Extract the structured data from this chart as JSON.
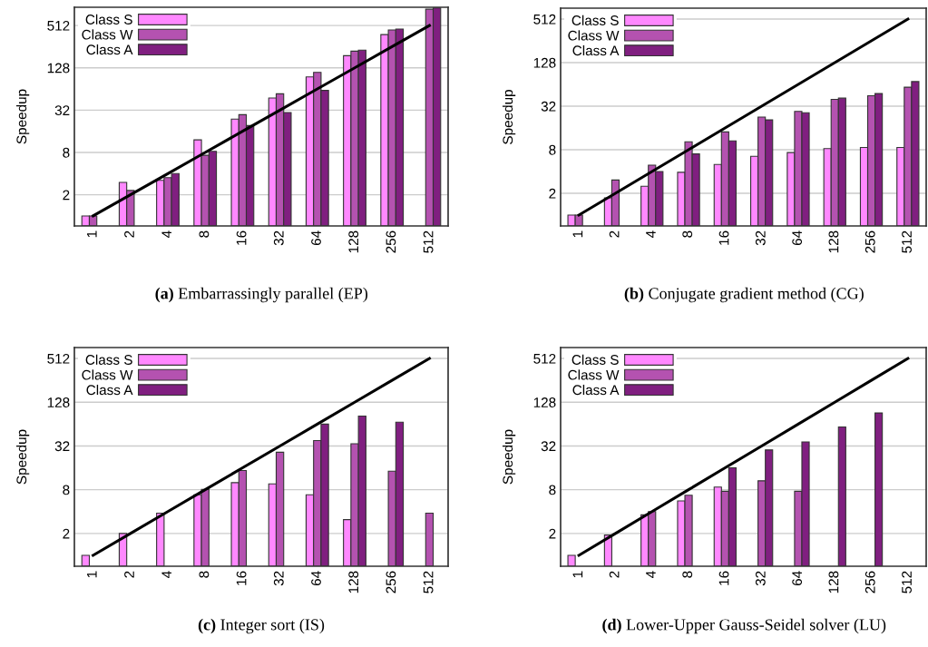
{
  "chart_data": [
    {
      "type": "bar",
      "title": "(a) Embarrassingly parallel (EP)",
      "ylabel": "Speedup",
      "categories": [
        "1",
        "2",
        "4",
        "8",
        "16",
        "32",
        "64",
        "128",
        "256",
        "512"
      ],
      "log": true,
      "ylim": [
        0.72,
        930
      ],
      "yticks": [
        2,
        8,
        32,
        128,
        512
      ],
      "grid": "y",
      "legend": "top left",
      "series": [
        {
          "name": "Class S",
          "color": "#ff88ff",
          "values": [
            1.0,
            3.0,
            3.2,
            12.1,
            23.8,
            47.5,
            95,
            190,
            380,
            null
          ]
        },
        {
          "name": "Class W",
          "color": "#b452b0",
          "values": [
            1.0,
            2.3,
            3.5,
            7.3,
            27.6,
            54.6,
            110,
            221,
            442,
            873
          ]
        },
        {
          "name": "Class A",
          "color": "#801f80",
          "values": [
            null,
            null,
            4.0,
            8.3,
            19.3,
            29.6,
            61,
            228,
            456,
            910
          ]
        },
        {
          "type": "line",
          "color": "#000000",
          "values": [
            1,
            2,
            4,
            8,
            16,
            32,
            64,
            128,
            256,
            512
          ]
        }
      ]
    },
    {
      "type": "bar",
      "title": "(b) Conjugate gradient method (CG)",
      "ylabel": "Speedup",
      "categories": [
        "1",
        "2",
        "4",
        "8",
        "16",
        "32",
        "64",
        "128",
        "256",
        "512"
      ],
      "log": true,
      "ylim": [
        0.707,
        724
      ],
      "yticks": [
        2,
        8,
        32,
        128,
        512
      ],
      "grid": "y",
      "legend": "top left",
      "series": [
        {
          "name": "Class S",
          "color": "#ff88ff",
          "values": [
            1.0,
            1.73,
            2.5,
            3.9,
            5.0,
            6.5,
            7.3,
            8.3,
            8.6,
            8.6
          ]
        },
        {
          "name": "Class W",
          "color": "#b452b0",
          "values": [
            1.0,
            3.05,
            4.9,
            10.3,
            14.1,
            22.6,
            27.1,
            39.7,
            44.6,
            58.5
          ]
        },
        {
          "name": "Class A",
          "color": "#801f80",
          "values": [
            null,
            null,
            4.0,
            7.0,
            10.6,
            20.7,
            26.0,
            41.3,
            47.8,
            70
          ]
        },
        {
          "type": "line",
          "color": "#000000",
          "values": [
            1,
            2,
            4,
            8,
            16,
            32,
            64,
            128,
            256,
            512
          ]
        }
      ]
    },
    {
      "type": "bar",
      "title": "(c) Integer sort (IS)",
      "ylabel": "Speedup",
      "categories": [
        "1",
        "2",
        "4",
        "8",
        "16",
        "32",
        "64",
        "128",
        "256",
        "512"
      ],
      "log": true,
      "ylim": [
        0.707,
        724
      ],
      "yticks": [
        2,
        8,
        32,
        128,
        512
      ],
      "grid": "y",
      "legend": "top left",
      "series": [
        {
          "name": "Class S",
          "color": "#ff88ff",
          "values": [
            1.0,
            2.0,
            3.8,
            6.8,
            10.0,
            9.6,
            6.8,
            3.1,
            null,
            null
          ]
        },
        {
          "name": "Class W",
          "color": "#b452b0",
          "values": [
            null,
            null,
            null,
            8.1,
            14.7,
            26.2,
            38,
            34.3,
            14.4,
            3.8
          ]
        },
        {
          "name": "Class A",
          "color": "#801f80",
          "values": [
            null,
            null,
            null,
            null,
            null,
            null,
            64,
            82.6,
            68,
            null
          ]
        },
        {
          "type": "line",
          "color": "#000000",
          "values": [
            1,
            2,
            4,
            8,
            16,
            32,
            64,
            128,
            256,
            512
          ]
        }
      ]
    },
    {
      "type": "bar",
      "title": "(d) Lower-Upper Gauss-Seidel solver (LU)",
      "ylabel": "Speedup",
      "categories": [
        "1",
        "2",
        "4",
        "8",
        "16",
        "32",
        "64",
        "128",
        "256",
        "512"
      ],
      "log": true,
      "ylim": [
        0.707,
        724
      ],
      "yticks": [
        2,
        8,
        32,
        128,
        512
      ],
      "grid": "y",
      "legend": "top left",
      "series": [
        {
          "name": "Class S",
          "color": "#ff88ff",
          "values": [
            1.0,
            1.9,
            3.6,
            5.6,
            8.7,
            null,
            null,
            null,
            null,
            null
          ]
        },
        {
          "name": "Class W",
          "color": "#b452b0",
          "values": [
            null,
            null,
            4.0,
            6.7,
            7.6,
            10.6,
            7.6,
            null,
            null,
            null
          ]
        },
        {
          "name": "Class A",
          "color": "#801f80",
          "values": [
            null,
            null,
            null,
            null,
            16,
            28.2,
            36.3,
            58.4,
            91,
            null
          ]
        },
        {
          "type": "line",
          "color": "#000000",
          "values": [
            1,
            2,
            4,
            8,
            16,
            32,
            64,
            128,
            256,
            512
          ]
        }
      ]
    }
  ]
}
